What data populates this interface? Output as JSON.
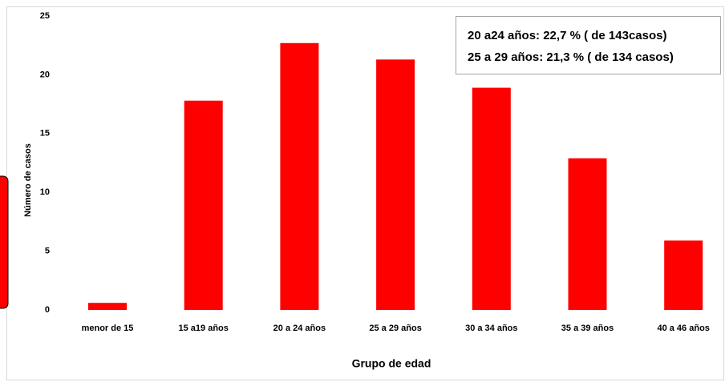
{
  "chart_data": {
    "type": "bar",
    "x_label": "Grupo de edad",
    "y_label": "Número de casos",
    "categories": [
      "menor de 15",
      "15 a19 años",
      "20 a 24 años",
      "25 a 29 años",
      "30 a 34 años",
      "35 a 39 años",
      "40 a 46 años"
    ],
    "values": [
      0.6,
      17.8,
      22.7,
      21.3,
      18.9,
      12.9,
      5.9
    ],
    "color": "#ff0000",
    "ylim": [
      0,
      25
    ],
    "yticks": [
      0,
      5,
      10,
      15,
      20,
      25
    ],
    "grid": false,
    "annotations": [
      "20 a24 años: 22,7 % ( de 143casos)",
      "25 a 29 años: 21,3 % ( de 134 casos)"
    ]
  }
}
